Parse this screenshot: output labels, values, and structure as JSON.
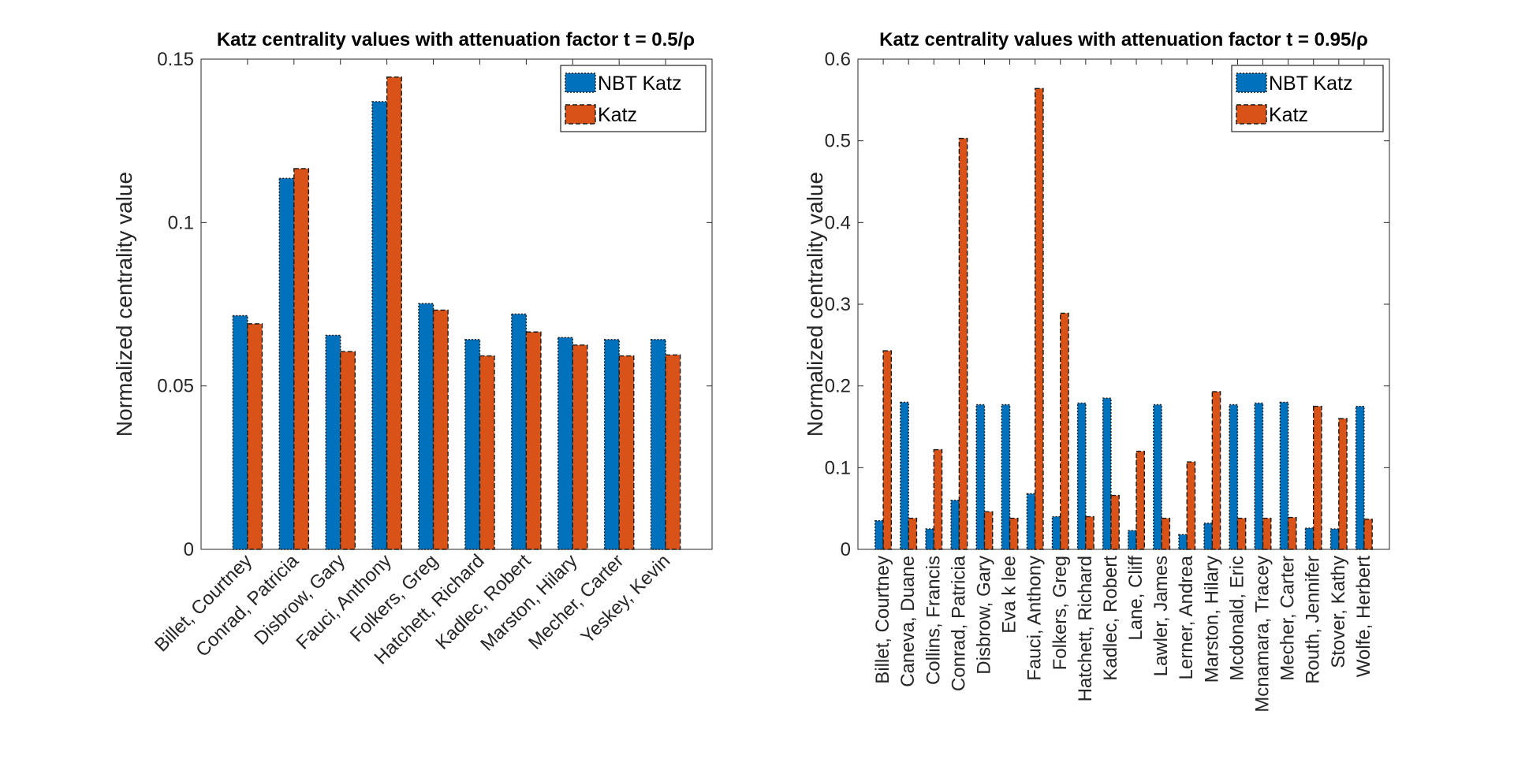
{
  "chart_data": [
    {
      "type": "bar",
      "title": "Katz centrality values with attenuation factor t = 0.5/ρ",
      "ylabel": "Normalized centrality value",
      "xlabel": "",
      "ylim": [
        0,
        0.15
      ],
      "yticks": [
        0,
        0.05,
        0.1,
        0.15
      ],
      "ytick_labels": [
        "0",
        "0.05",
        "0.1",
        "0.15"
      ],
      "xtick_rotation": -45,
      "legend_position": "top-right",
      "grid": false,
      "categories": [
        "Billet, Courtney",
        "Conrad, Patricia",
        "Disbrow, Gary",
        "Fauci, Anthony",
        "Folkers, Greg",
        "Hatchett, Richard",
        "Kadlec, Robert",
        "Marston, Hilary",
        "Mecher, Carter",
        "Yeskey, Kevin"
      ],
      "series": [
        {
          "name": "NBT Katz",
          "color": "#0072BD",
          "values": [
            0.0715,
            0.1135,
            0.0655,
            0.137,
            0.0752,
            0.0642,
            0.072,
            0.0648,
            0.0642,
            0.0642
          ]
        },
        {
          "name": "Katz",
          "color": "#D95319",
          "values": [
            0.069,
            0.1165,
            0.0605,
            0.1445,
            0.0732,
            0.0592,
            0.0665,
            0.0625,
            0.0592,
            0.0595
          ]
        }
      ]
    },
    {
      "type": "bar",
      "title": "Katz centrality values with attenuation factor t = 0.95/ρ",
      "ylabel": "Normalized centrality value",
      "xlabel": "",
      "ylim": [
        0,
        0.6
      ],
      "yticks": [
        0,
        0.1,
        0.2,
        0.3,
        0.4,
        0.5,
        0.6
      ],
      "ytick_labels": [
        "0",
        "0.1",
        "0.2",
        "0.3",
        "0.4",
        "0.5",
        "0.6"
      ],
      "xtick_rotation": -90,
      "legend_position": "top-right",
      "grid": false,
      "categories": [
        "Billet, Courtney",
        "Caneva, Duane",
        "Collins, Francis",
        "Conrad, Patricia",
        "Disbrow, Gary",
        "Eva k lee",
        "Fauci, Anthony",
        "Folkers, Greg",
        "Hatchett, Richard",
        "Kadlec, Robert",
        "Lane, Cliff",
        "Lawler, James",
        "Lerner, Andrea",
        "Marston, Hilary",
        "Mcdonald, Eric",
        "Mcnamara, Tracey",
        "Mecher, Carter",
        "Routh, Jennifer",
        "Stover, Kathy",
        "Wolfe, Herbert"
      ],
      "series": [
        {
          "name": "NBT Katz",
          "color": "#0072BD",
          "values": [
            0.035,
            0.18,
            0.025,
            0.06,
            0.177,
            0.177,
            0.068,
            0.04,
            0.179,
            0.185,
            0.023,
            0.177,
            0.018,
            0.032,
            0.177,
            0.179,
            0.18,
            0.026,
            0.025,
            0.175
          ]
        },
        {
          "name": "Katz",
          "color": "#D95319",
          "values": [
            0.243,
            0.038,
            0.122,
            0.503,
            0.046,
            0.038,
            0.564,
            0.289,
            0.04,
            0.066,
            0.12,
            0.038,
            0.107,
            0.193,
            0.038,
            0.038,
            0.039,
            0.175,
            0.16,
            0.037
          ]
        }
      ]
    }
  ]
}
